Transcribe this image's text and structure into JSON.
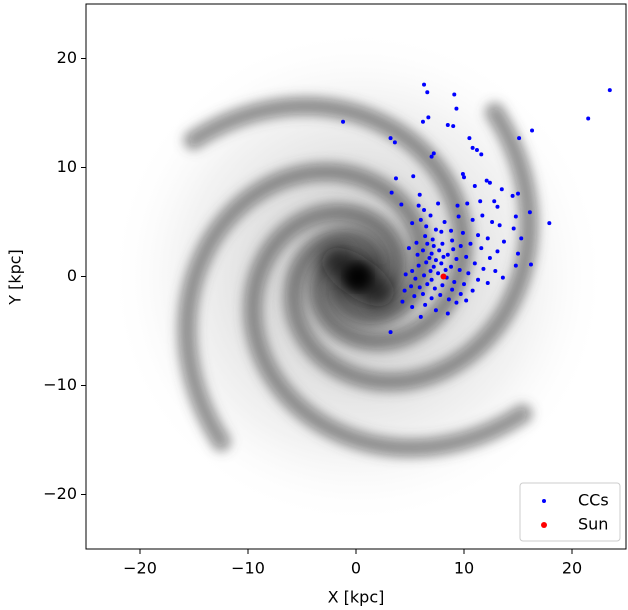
{
  "chart_data": {
    "type": "scatter",
    "xlabel": "X [kpc]",
    "ylabel": "Y [kpc]",
    "xlim": [
      -25,
      25
    ],
    "ylim": [
      -25,
      25
    ],
    "xticks": [
      {
        "value": -20,
        "label": "−20"
      },
      {
        "value": -10,
        "label": "−10"
      },
      0,
      10,
      20
    ],
    "yticks": [
      {
        "value": -20,
        "label": "−20"
      },
      {
        "value": -10,
        "label": "−10"
      },
      0,
      10,
      20
    ],
    "legend": "lower right",
    "series": [
      {
        "name": "CCs",
        "color": "#0000ff",
        "x": [
          -1.2,
          23.5,
          21.5,
          16.3,
          15.1,
          3.2,
          3.6,
          6.3,
          6.6,
          9.1,
          9.3,
          6.2,
          6.7,
          8.5,
          9.0,
          10.5,
          10.8,
          11.2,
          11.6,
          7.2,
          7.0,
          5.3,
          3.7,
          9.9,
          10.0,
          11.0,
          12.1,
          12.4,
          13.5,
          14.5,
          15.0,
          11.5,
          12.8,
          13.1,
          10.3,
          9.4,
          7.6,
          3.3,
          5.9,
          4.2,
          5.8,
          6.3,
          14.8,
          16.1,
          17.9,
          14.6,
          13.3,
          12.6,
          11.7,
          10.8,
          9.5,
          8.2,
          6.9,
          6.0,
          5.2,
          6.5,
          7.4,
          8.8,
          9.9,
          11.3,
          12.2,
          13.7,
          15.3,
          15.0,
          16.2,
          14.8,
          13.1,
          12.4,
          11.6,
          10.6,
          9.7,
          8.9,
          8.0,
          7.1,
          6.4,
          5.6,
          4.9,
          6.2,
          7.0,
          7.7,
          8.5,
          9.3,
          10.2,
          11.0,
          11.8,
          12.9,
          13.6,
          12.2,
          11.3,
          10.4,
          9.6,
          8.8,
          7.9,
          7.2,
          6.5,
          5.8,
          5.2,
          4.6,
          5.5,
          6.3,
          7.0,
          7.6,
          8.4,
          9.1,
          10.0,
          10.8,
          9.7,
          8.9,
          8.0,
          7.3,
          6.6,
          5.9,
          5.1,
          4.5,
          5.4,
          6.2,
          7.0,
          7.8,
          8.6,
          9.3,
          10.2,
          6.4,
          5.2,
          4.3,
          7.4,
          8.5,
          6.0,
          3.2,
          7.2,
          6.8,
          8.1,
          7.4,
          6.9,
          8.3,
          9.0,
          5.7,
          7.9,
          6.6
        ],
        "y": [
          14.2,
          17.1,
          14.5,
          13.4,
          12.7,
          12.7,
          12.3,
          17.6,
          16.9,
          16.7,
          15.4,
          14.2,
          14.6,
          13.9,
          13.8,
          12.7,
          11.8,
          11.6,
          11.2,
          11.3,
          11.0,
          9.2,
          9.0,
          9.4,
          9.1,
          8.3,
          8.8,
          8.6,
          8.0,
          7.4,
          7.6,
          6.9,
          6.9,
          6.4,
          6.7,
          6.5,
          6.7,
          7.7,
          7.5,
          6.6,
          6.5,
          6.1,
          5.5,
          5.9,
          4.9,
          4.4,
          4.7,
          5.0,
          5.6,
          5.2,
          5.5,
          5.0,
          5.6,
          5.2,
          4.9,
          4.6,
          4.3,
          4.2,
          4.0,
          3.8,
          3.5,
          3.2,
          3.5,
          2.1,
          1.1,
          1.0,
          2.3,
          1.7,
          2.6,
          3.0,
          2.8,
          3.3,
          3.0,
          3.4,
          3.7,
          3.1,
          2.6,
          2.4,
          2.1,
          2.4,
          2.0,
          1.6,
          1.8,
          1.2,
          0.7,
          0.5,
          -0.1,
          -0.6,
          -0.3,
          0.3,
          0.6,
          0.9,
          1.2,
          0.9,
          1.3,
          1.0,
          0.5,
          0.2,
          -0.2,
          0.1,
          -0.3,
          0.3,
          -0.1,
          -0.5,
          -0.7,
          -1.3,
          -1.6,
          -1.2,
          -0.8,
          -1.1,
          -0.7,
          -1.0,
          -0.9,
          -1.3,
          -1.8,
          -1.6,
          -2.0,
          -1.7,
          -2.1,
          -2.4,
          -2.2,
          -2.6,
          -2.8,
          -2.3,
          -3.1,
          -3.4,
          -3.7,
          -5.1,
          2.8,
          1.7,
          1.8,
          1.5,
          0.5,
          0.6,
          2.5,
          2.0,
          4.1,
          3.0
        ]
      },
      {
        "name": "Sun",
        "color": "#ff0000",
        "x": [
          8.1
        ],
        "y": [
          0.0
        ]
      }
    ]
  }
}
